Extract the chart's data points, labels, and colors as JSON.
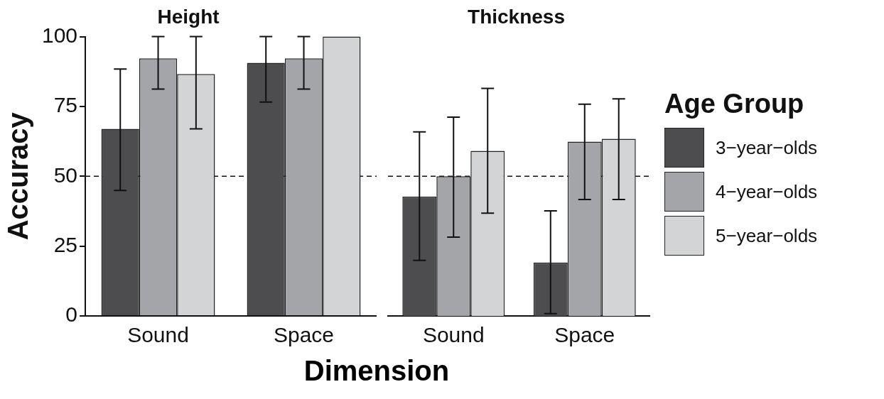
{
  "chart_data": [
    {
      "type": "bar",
      "title": "Height",
      "xlabel": "Dimension",
      "ylabel": "Accuracy",
      "categories": [
        "Sound",
        "Space"
      ],
      "series": [
        {
          "color": "#4d4d4f",
          "values": [
            67,
            90.6
          ],
          "errors": [
            [
              44.9,
              88.4
            ],
            [
              76.6,
              100
            ]
          ]
        },
        {
          "color": "#a4a5a8",
          "values": [
            92.2,
            92.2
          ],
          "errors": [
            [
              81.2,
              100
            ],
            [
              81.2,
              100
            ]
          ]
        },
        {
          "color": "#d3d4d6",
          "values": [
            86.6,
            100
          ],
          "errors": [
            [
              67,
              100
            ],
            null
          ]
        }
      ],
      "ylim": [
        0,
        100
      ],
      "yticks": [
        0,
        25,
        50,
        75,
        100
      ],
      "grid": false,
      "ref_lines": [
        {
          "axis": "y",
          "value": 50,
          "line_style": "dashed"
        }
      ]
    },
    {
      "type": "bar",
      "title": "Thickness",
      "categories": [
        "Sound",
        "Space"
      ],
      "series": [
        {
          "name": "3−year−olds",
          "color": "#4d4d4f",
          "values": [
            42.7,
            19.1
          ],
          "errors": [
            [
              19.9,
              65.9
            ],
            [
              0.8,
              37.6
            ]
          ]
        },
        {
          "name": "4−year−olds",
          "color": "#a4a5a8",
          "values": [
            50,
            62.4
          ],
          "errors": [
            [
              28.2,
              71.2
            ],
            [
              41.7,
              75.8
            ]
          ]
        },
        {
          "name": "5−year−olds",
          "color": "#d3d4d6",
          "values": [
            59.1,
            63.4
          ],
          "errors": [
            [
              36.8,
              81.5
            ],
            [
              41.7,
              77.7
            ]
          ]
        }
      ],
      "ylim": [
        0,
        100
      ],
      "yticks": [
        0,
        25,
        50,
        75,
        100
      ],
      "grid": false,
      "tick_labels": "x",
      "legend": "right",
      "legend_title": "Age Group",
      "ref_lines": [
        {
          "axis": "y",
          "value": 50,
          "line_style": "dashed"
        }
      ]
    }
  ]
}
